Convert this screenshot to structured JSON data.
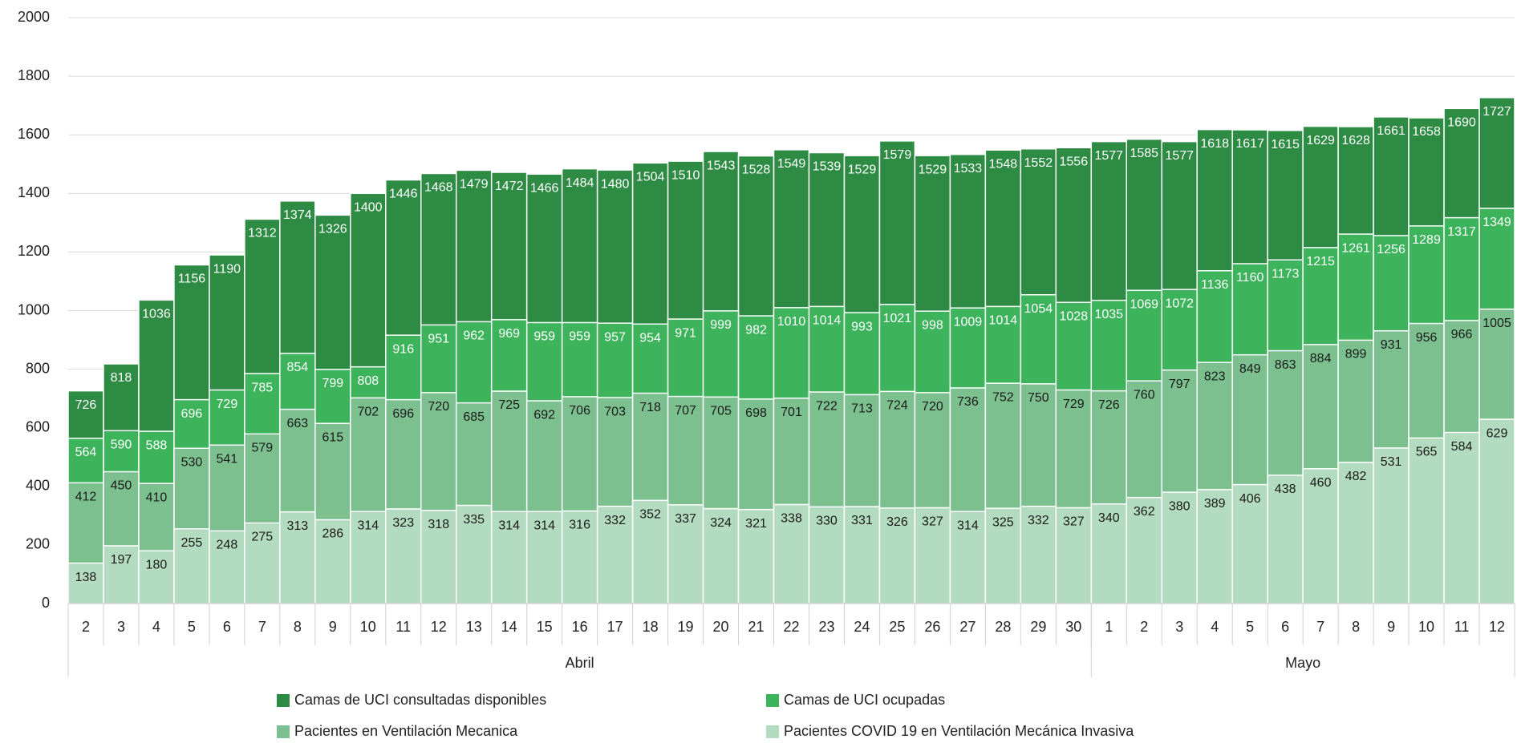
{
  "chart_data": {
    "type": "bar",
    "barmode": "overlay",
    "categories": [
      "2",
      "3",
      "4",
      "5",
      "6",
      "7",
      "8",
      "9",
      "10",
      "11",
      "12",
      "13",
      "14",
      "15",
      "16",
      "17",
      "18",
      "19",
      "20",
      "21",
      "22",
      "23",
      "24",
      "25",
      "26",
      "27",
      "28",
      "29",
      "30",
      "1",
      "2",
      "3",
      "4",
      "5",
      "6",
      "7",
      "8",
      "9",
      "10",
      "11",
      "12"
    ],
    "groups": [
      {
        "label": "Abril",
        "size": 29
      },
      {
        "label": "Mayo",
        "size": 12
      }
    ],
    "series": [
      {
        "name": "Camas de UCI consultadas disponibles",
        "color": "#2e8b43",
        "label_color": "#ffffff",
        "values": [
          726,
          818,
          1036,
          1156,
          1190,
          1312,
          1374,
          1326,
          1400,
          1446,
          1468,
          1479,
          1472,
          1466,
          1484,
          1480,
          1504,
          1510,
          1543,
          1528,
          1549,
          1539,
          1529,
          1579,
          1529,
          1533,
          1548,
          1552,
          1556,
          1577,
          1585,
          1577,
          1618,
          1617,
          1615,
          1629,
          1628,
          1661,
          1658,
          1690,
          1727
        ]
      },
      {
        "name": "Camas de UCI ocupadas",
        "color": "#3db35b",
        "label_color": "#ffffff",
        "values": [
          564,
          590,
          588,
          696,
          729,
          785,
          854,
          799,
          808,
          916,
          951,
          962,
          969,
          959,
          959,
          957,
          954,
          971,
          999,
          982,
          1010,
          1014,
          993,
          1021,
          998,
          1009,
          1014,
          1054,
          1028,
          1035,
          1069,
          1072,
          1136,
          1160,
          1173,
          1215,
          1261,
          1256,
          1289,
          1317,
          1349
        ]
      },
      {
        "name": "Pacientes en Ventilación Mecanica",
        "color": "#7cc08f",
        "label_color": "#1a1a1a",
        "values": [
          412,
          450,
          410,
          530,
          541,
          579,
          663,
          615,
          702,
          696,
          720,
          685,
          725,
          692,
          706,
          703,
          718,
          707,
          705,
          698,
          701,
          722,
          713,
          724,
          720,
          736,
          752,
          750,
          729,
          726,
          760,
          797,
          823,
          849,
          863,
          884,
          899,
          931,
          956,
          966,
          1005
        ]
      },
      {
        "name": "Pacientes COVID 19 en Ventilación Mecánica Invasiva",
        "color": "#b3dbbf",
        "label_color": "#1a1a1a",
        "values": [
          138,
          197,
          180,
          255,
          248,
          275,
          313,
          286,
          314,
          323,
          318,
          335,
          314,
          314,
          316,
          332,
          352,
          337,
          324,
          321,
          338,
          330,
          331,
          326,
          327,
          314,
          325,
          332,
          327,
          340,
          362,
          380,
          389,
          406,
          438,
          460,
          482,
          531,
          565,
          584,
          629
        ]
      }
    ],
    "ylim": [
      0,
      2000
    ],
    "yticks": [
      0,
      200,
      400,
      600,
      800,
      1000,
      1200,
      1400,
      1600,
      1800,
      2000
    ],
    "grid": true
  }
}
